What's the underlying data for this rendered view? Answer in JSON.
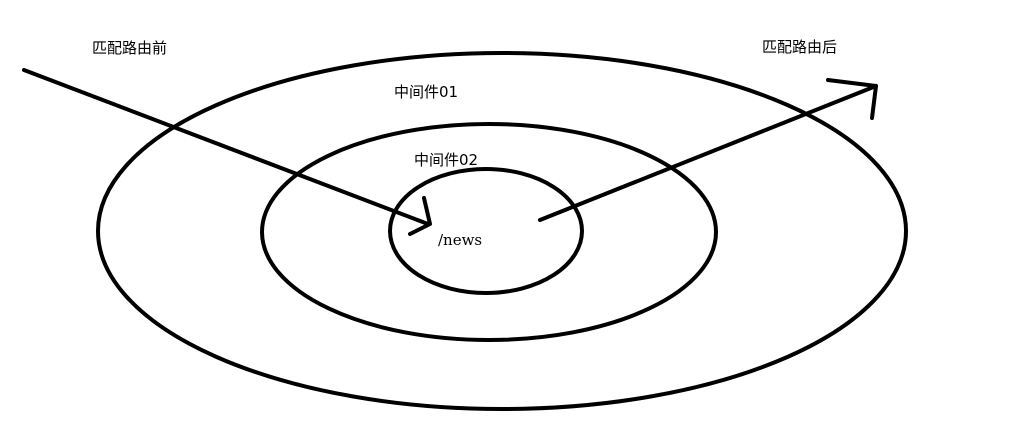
{
  "labels": {
    "before_match": "匹配路由前",
    "after_match": "匹配路由后",
    "middleware_01": "中间件01",
    "middleware_02": "中间件02",
    "route": "/news"
  },
  "colors": {
    "stroke": "#000000",
    "background": "#ffffff"
  }
}
